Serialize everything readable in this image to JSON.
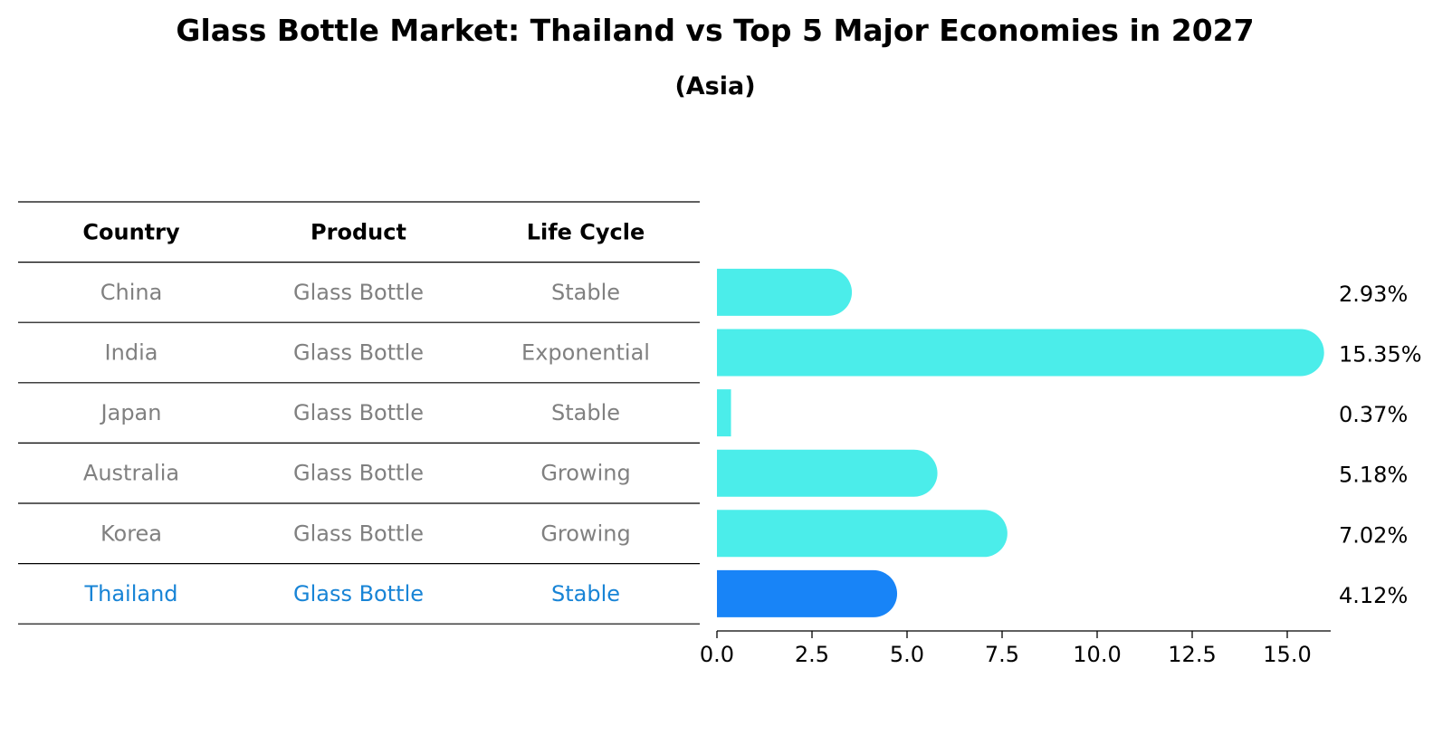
{
  "title": "Glass Bottle Market: Thailand vs Top 5 Major Economies in 2027",
  "subtitle": "(Asia)",
  "table": {
    "headers": [
      "Country",
      "Product",
      "Life Cycle"
    ],
    "rows": [
      {
        "country": "China",
        "product": "Glass Bottle",
        "life_cycle": "Stable"
      },
      {
        "country": "India",
        "product": "Glass Bottle",
        "life_cycle": "Exponential"
      },
      {
        "country": "Japan",
        "product": "Glass Bottle",
        "life_cycle": "Stable"
      },
      {
        "country": "Australia",
        "product": "Glass Bottle",
        "life_cycle": "Growing"
      },
      {
        "country": "Korea",
        "product": "Glass Bottle",
        "life_cycle": "Growing"
      },
      {
        "country": "Thailand",
        "product": "Glass Bottle",
        "life_cycle": "Stable"
      }
    ],
    "highlight_row": "Thailand"
  },
  "chart_data": {
    "type": "bar",
    "orientation": "horizontal",
    "categories": [
      "China",
      "India",
      "Japan",
      "Australia",
      "Korea",
      "Thailand"
    ],
    "values": [
      2.93,
      15.35,
      0.37,
      5.18,
      7.02,
      4.12
    ],
    "value_labels": [
      "2.93%",
      "15.35%",
      "0.37%",
      "5.18%",
      "7.02%",
      "4.12%"
    ],
    "xlim": [
      0,
      16.2
    ],
    "xticks": [
      0.0,
      2.5,
      5.0,
      7.5,
      10.0,
      12.5,
      15.0
    ],
    "xtick_labels": [
      "0.0",
      "2.5",
      "5.0",
      "7.5",
      "10.0",
      "12.5",
      "15.0"
    ],
    "grid": false,
    "highlight_category": "Thailand"
  },
  "colors": {
    "bar": "#4BEDEA",
    "highlight_bar": "#1884F7",
    "highlight_text": "#1884D6",
    "row_text": "#808080",
    "header_text": "#000000",
    "lines": "#000000"
  }
}
